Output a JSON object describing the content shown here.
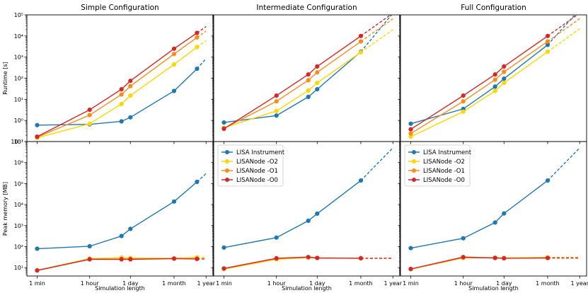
{
  "chart_data": {
    "type": "line",
    "scale": {
      "x": "log",
      "y": "log"
    },
    "x_ticks": [
      {
        "label": "1 min",
        "value": 1
      },
      {
        "label": "1 hour",
        "value": 60
      },
      {
        "label": "1 day",
        "value": 1440
      },
      {
        "label": "1 month",
        "value": 43200
      },
      {
        "label": "1 year",
        "value": 525600
      }
    ],
    "xlabel": "Simulation length",
    "titles": [
      "Simple Configuration",
      "Intermediate Configuration",
      "Full Configuration"
    ],
    "rows": [
      {
        "id": "runtime",
        "ylabel": "Runtime [s]",
        "ylim": [
          0.1,
          100000
        ],
        "y_ticks": [
          {
            "label": "10⁻¹",
            "value": 0.1
          },
          {
            "label": "10⁰",
            "value": 1
          },
          {
            "label": "10¹",
            "value": 10
          },
          {
            "label": "10²",
            "value": 100
          },
          {
            "label": "10³",
            "value": 1000
          },
          {
            "label": "10⁴",
            "value": 10000
          },
          {
            "label": "10⁵",
            "value": 100000
          }
        ]
      },
      {
        "id": "memory",
        "ylabel": "Peak memory [MB]",
        "ylim": [
          4,
          10000000
        ],
        "y_ticks": [
          {
            "label": "10¹",
            "value": 10
          },
          {
            "label": "10²",
            "value": 100
          },
          {
            "label": "10³",
            "value": 1000
          },
          {
            "label": "10⁴",
            "value": 10000
          },
          {
            "label": "10⁵",
            "value": 100000
          },
          {
            "label": "10⁶",
            "value": 1000000
          },
          {
            "label": "10⁷",
            "value": 10000000
          }
        ]
      }
    ],
    "series_styles": [
      {
        "name": "LISA Instrument",
        "color": "#1f77b4"
      },
      {
        "name": "LISANode -O2",
        "color": "#ffd700"
      },
      {
        "name": "LISANode -O1",
        "color": "#ff8c1a"
      },
      {
        "name": "LISANode -O0",
        "color": "#d62728"
      }
    ],
    "legend": {
      "location": "upper-left",
      "panels": [
        "memory-1",
        "memory-2"
      ]
    },
    "panels": [
      {
        "id": "runtime-0",
        "row": 0,
        "col": 0,
        "series": [
          {
            "name": "LISA Instrument",
            "x": [
              1,
              60,
              720,
              1440,
              43200,
              259200
            ],
            "y": [
              0.6,
              0.65,
              0.9,
              1.4,
              25,
              280
            ],
            "extrap": [
              [
                259200,
                280.0
              ],
              [
                525600,
                850.0
              ]
            ]
          },
          {
            "name": "LISANode -O2",
            "x": [
              1,
              60,
              720,
              1440,
              43200,
              259200
            ],
            "y": [
              0.15,
              0.7,
              6,
              15,
              450,
              3000
            ],
            "extrap": [
              [
                259200,
                3000
              ],
              [
                525600,
                6000
              ]
            ]
          },
          {
            "name": "LISANode -O1",
            "x": [
              1,
              60,
              720,
              1440,
              43200,
              259200
            ],
            "y": [
              0.16,
              1.8,
              17,
              42,
              1400,
              8500
            ],
            "extrap": [
              [
                259200,
                8500
              ],
              [
                525600,
                17000
              ]
            ]
          },
          {
            "name": "LISANode -O0",
            "x": [
              1,
              60,
              720,
              1440,
              43200,
              259200
            ],
            "y": [
              0.17,
              3.2,
              30,
              75,
              2500,
              14000
            ],
            "extrap": [
              [
                259200,
                14000
              ],
              [
                525600,
                28000
              ]
            ]
          }
        ]
      },
      {
        "id": "runtime-1",
        "row": 0,
        "col": 1,
        "series": [
          {
            "name": "LISA Instrument",
            "x": [
              1,
              60,
              720,
              1440,
              43200
            ],
            "y": [
              0.8,
              1.7,
              13,
              30,
              1800
            ],
            "extrap": [
              [
                43200,
                1800
              ],
              [
                525600,
                120000
              ]
            ]
          },
          {
            "name": "LISANode -O2",
            "x": [
              1,
              60,
              720,
              1440,
              43200
            ],
            "y": [
              0.45,
              2.8,
              26,
              60,
              1700
            ],
            "extrap": [
              [
                43200,
                1700
              ],
              [
                525600,
                20000
              ]
            ]
          },
          {
            "name": "LISANode -O1",
            "x": [
              1,
              60,
              720,
              1440,
              43200
            ],
            "y": [
              0.42,
              8,
              80,
              190,
              5500
            ],
            "extrap": [
              [
                43200,
                5500
              ],
              [
                525600,
                65000
              ]
            ]
          },
          {
            "name": "LISANode -O0",
            "x": [
              1,
              60,
              720,
              1440,
              43200
            ],
            "y": [
              0.4,
              15,
              150,
              360,
              10000
            ],
            "extrap": [
              [
                43200,
                10000
              ],
              [
                525600,
                120000
              ]
            ]
          }
        ]
      },
      {
        "id": "runtime-2",
        "row": 0,
        "col": 2,
        "series": [
          {
            "name": "LISA Instrument",
            "x": [
              1,
              60,
              720,
              1440,
              43200
            ],
            "y": [
              0.7,
              3.5,
              40,
              95,
              3800
            ],
            "extrap": [
              [
                43200,
                3800
              ],
              [
                525600,
                180000
              ]
            ]
          },
          {
            "name": "LISANode -O2",
            "x": [
              1,
              60,
              720,
              1440,
              43200
            ],
            "y": [
              0.17,
              2.6,
              25,
              60,
              1800
            ],
            "extrap": [
              [
                43200,
                1800
              ],
              [
                525600,
                22000
              ]
            ]
          },
          {
            "name": "LISANode -O1",
            "x": [
              1,
              60,
              720,
              1440,
              43200
            ],
            "y": [
              0.24,
              8,
              85,
              200,
              5500
            ],
            "extrap": [
              [
                43200,
                5500
              ],
              [
                525600,
                66000
              ]
            ]
          },
          {
            "name": "LISANode -O0",
            "x": [
              1,
              60,
              720,
              1440,
              43200
            ],
            "y": [
              0.38,
              15,
              150,
              360,
              10000
            ],
            "extrap": [
              [
                43200,
                10000
              ],
              [
                525600,
                120000
              ]
            ]
          }
        ]
      },
      {
        "id": "memory-0",
        "row": 1,
        "col": 0,
        "series": [
          {
            "name": "LISA Instrument",
            "x": [
              1,
              60,
              720,
              1440,
              43200,
              259200
            ],
            "y": [
              80,
              105,
              320,
              700,
              14000,
              120000
            ],
            "extrap": [
              [
                259200,
                120000
              ],
              [
                525600,
                300000
              ]
            ]
          },
          {
            "name": "LISANode -O2",
            "x": [
              1,
              60,
              720,
              1440,
              43200,
              259200
            ],
            "y": [
              7.5,
              27,
              30,
              29,
              28,
              31
            ],
            "extrap": [
              [
                259200,
                31
              ],
              [
                525600,
                31
              ]
            ]
          },
          {
            "name": "LISANode -O1",
            "x": [
              1,
              60,
              720,
              1440,
              43200,
              259200
            ],
            "y": [
              7.5,
              26,
              26,
              26,
              27,
              27
            ],
            "extrap": [
              [
                259200,
                27
              ],
              [
                525600,
                27
              ]
            ]
          },
          {
            "name": "LISANode -O0",
            "x": [
              1,
              60,
              720,
              1440,
              43200,
              259200
            ],
            "y": [
              7.3,
              25,
              25,
              25,
              27,
              26
            ],
            "extrap": [
              [
                259200,
                26
              ],
              [
                525600,
                26
              ]
            ]
          }
        ]
      },
      {
        "id": "memory-1",
        "row": 1,
        "col": 1,
        "series": [
          {
            "name": "LISA Instrument",
            "x": [
              1,
              60,
              720,
              1440,
              43200
            ],
            "y": [
              90,
              270,
              1700,
              3700,
              140000
            ],
            "extrap": [
              [
                43200,
                140000
              ],
              [
                525600,
                5000000
              ]
            ]
          },
          {
            "name": "LISANode -O2",
            "x": [
              1,
              60,
              720,
              1440,
              43200
            ],
            "y": [
              8.5,
              25,
              30,
              29,
              28
            ],
            "extrap": [
              [
                43200,
                28
              ],
              [
                525600,
                28
              ]
            ]
          },
          {
            "name": "LISANode -O1",
            "x": [
              1,
              60,
              720,
              1440,
              43200
            ],
            "y": [
              9,
              27,
              31,
              29,
              28
            ],
            "extrap": [
              [
                43200,
                28
              ],
              [
                525600,
                28
              ]
            ]
          },
          {
            "name": "LISANode -O0",
            "x": [
              1,
              60,
              720,
              1440,
              43200
            ],
            "y": [
              9.2,
              28,
              32,
              29,
              28
            ],
            "extrap": [
              [
                43200,
                28
              ],
              [
                525600,
                28
              ]
            ]
          }
        ]
      },
      {
        "id": "memory-2",
        "row": 1,
        "col": 2,
        "series": [
          {
            "name": "LISA Instrument",
            "x": [
              1,
              60,
              720,
              1440,
              43200
            ],
            "y": [
              85,
              250,
              1400,
              3800,
              140000
            ],
            "extrap": [
              [
                43200,
                140000
              ],
              [
                525600,
                5000000
              ]
            ]
          },
          {
            "name": "LISANode -O2",
            "x": [
              1,
              60,
              720,
              1440,
              43200
            ],
            "y": [
              8.5,
              29,
              30,
              29,
              31
            ],
            "extrap": [
              [
                43200,
                31
              ],
              [
                525600,
                31
              ]
            ]
          },
          {
            "name": "LISANode -O1",
            "x": [
              1,
              60,
              720,
              1440,
              43200
            ],
            "y": [
              8.5,
              30,
              29,
              28,
              29
            ],
            "extrap": [
              [
                43200,
                29
              ],
              [
                525600,
                29
              ]
            ]
          },
          {
            "name": "LISANode -O0",
            "x": [
              1,
              60,
              720,
              1440,
              43200
            ],
            "y": [
              8.7,
              32,
              29,
              28,
              29
            ],
            "extrap": [
              [
                43200,
                29
              ],
              [
                525600,
                29
              ]
            ]
          }
        ]
      }
    ]
  }
}
